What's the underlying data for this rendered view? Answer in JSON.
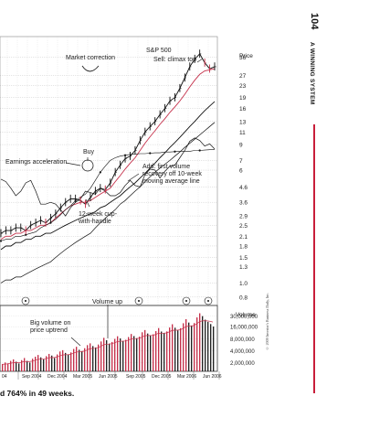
{
  "page": {
    "page_number": "104",
    "section_title": "A WINNING SYSTEM",
    "caption": "d 764% in 49 weeks.",
    "copyright": "© 2009 Investor's Business Daily, Inc."
  },
  "chart_data": {
    "type": "line",
    "title": "",
    "price_axis_label": "Price",
    "price_ticks": [
      "36",
      "27",
      "23",
      "19",
      "16",
      "13",
      "11",
      "9",
      "7",
      "6",
      "4.6",
      "3.6",
      "2.9",
      "2.5",
      "2.1",
      "1.8",
      "1.5",
      "1.3",
      "1.0",
      "0.8"
    ],
    "volume_axis_label": "Volume",
    "volume_ticks": [
      "30,000,000",
      "16,000,000",
      "8,000,000",
      "4,000,000",
      "2,000,000"
    ],
    "x_tick_labels": [
      "04",
      "Sep 2004",
      "Dec 2004",
      "Mar 2005",
      "Jun 2005",
      "Sep 2005",
      "Dec 2005",
      "Mar 2006",
      "Jun 2006"
    ],
    "annotations": {
      "sp500": "S&P 500",
      "market_correction": "Market correction",
      "sell_climax": "Sell: climax top",
      "buy": "Buy",
      "earnings_acceleration": "Earnings acceleration",
      "add_line1": "Add: first volume",
      "add_line2": "recovery off 10-week",
      "add_line3": "moving average line",
      "cup_line1": "12-week cup-",
      "cup_line2": "with-handle",
      "volume_up": "Volume up",
      "bigvol_line1": "Big volume on",
      "bigvol_line2": "price uptrend"
    },
    "series": [
      {
        "name": "",
        "values": [
          2.2,
          2.3,
          2.3,
          2.4,
          2.4,
          2.3,
          2.5,
          2.6,
          2.7,
          2.6,
          2.8,
          3.0,
          3.3,
          3.6,
          3.8,
          3.8,
          3.7,
          3.5,
          3.9,
          4.3,
          4.5,
          4.4,
          4.9,
          5.8,
          6.5,
          7.2,
          7.5,
          8.2,
          9.6,
          11,
          12,
          13,
          14.5,
          16,
          18,
          19,
          22,
          26,
          31,
          35,
          38,
          33,
          30,
          31
        ]
      },
      {
        "name": "",
        "values": [
          2.0,
          2.1,
          2.1,
          2.2,
          2.2,
          2.3,
          2.3,
          2.4,
          2.5,
          2.5,
          2.6,
          2.8,
          3.0,
          3.2,
          3.4,
          3.5,
          3.6,
          3.6,
          3.7,
          3.9,
          4.1,
          4.3,
          4.5,
          5.0,
          5.5,
          6.1,
          6.7,
          7.3,
          8.2,
          9.2,
          10.2,
          11.2,
          12.4,
          13.6,
          15,
          16.4,
          18,
          20,
          22.5,
          25,
          27.5,
          29,
          29.5,
          30
        ]
      },
      {
        "name": "",
        "values": [
          1.7,
          1.8,
          1.8,
          1.9,
          1.9,
          2.0,
          2.0,
          2.1,
          2.1,
          2.2,
          2.2,
          2.3,
          2.4,
          2.5,
          2.6,
          2.7,
          2.8,
          2.9,
          3.0,
          3.1,
          3.3,
          3.4,
          3.6,
          3.8,
          4.0,
          4.3,
          4.6,
          4.9,
          5.3,
          5.7,
          6.2,
          6.7,
          7.3,
          7.9,
          8.6,
          9.3,
          10.1,
          11,
          12,
          13,
          14.2,
          15.4,
          16.6,
          17.8
        ]
      },
      {
        "name": "",
        "values": [
          5.2,
          5.0,
          4.5,
          4.0,
          4.3,
          4.9,
          5.1,
          4.3,
          3.5,
          3.5,
          3.6,
          3.5,
          3.2,
          2.9,
          3.3,
          3.6,
          3.8,
          4.3,
          4.2,
          4.1,
          4.5,
          4.3,
          4.0,
          4.0,
          4.2,
          4.7,
          5.1,
          4.7,
          4.6,
          5.6,
          6.1,
          6.0,
          5.3,
          5.9,
          6.4,
          6.5,
          7.3,
          8.2,
          9.5,
          10.0,
          9.6,
          8.8,
          9.1,
          8.4
        ]
      },
      {
        "name": "",
        "values": [
          1.95,
          2.0,
          2.0,
          2.1,
          2.1,
          2.15,
          2.2,
          2.25,
          2.4,
          2.5,
          2.6,
          2.75,
          2.95,
          3.2,
          3.4,
          3.7,
          3.9,
          4.1,
          4.5,
          5.1,
          5.8,
          6.4,
          7.0,
          7.3,
          7.5,
          7.6,
          7.7,
          7.75,
          7.8,
          7.8,
          7.85,
          7.9,
          7.9,
          8.0,
          8.0,
          8.05,
          8.1,
          8.1,
          8.1,
          8.2,
          8.2,
          8.25,
          8.3,
          8.3
        ]
      },
      {
        "name": "",
        "values": [
          1.0,
          1.05,
          1.05,
          1.1,
          1.1,
          1.15,
          1.2,
          1.25,
          1.3,
          1.35,
          1.4,
          1.5,
          1.6,
          1.7,
          1.8,
          1.9,
          2.0,
          2.1,
          2.2,
          2.4,
          2.6,
          2.8,
          3.0,
          3.2,
          3.5,
          3.7,
          4.0,
          4.3,
          4.6,
          5.0,
          5.4,
          5.8,
          6.2,
          6.6,
          7.0,
          7.5,
          8.0,
          8.6,
          9.2,
          9.8,
          10.5,
          11.2,
          12.0,
          12.8
        ]
      }
    ],
    "volume": [
      1.8,
      2.0,
      1.9,
      2.2,
      2.4,
      2.1,
      1.9,
      2.3,
      2.6,
      2.2,
      2.0,
      2.5,
      2.8,
      3.1,
      2.7,
      2.4,
      2.9,
      3.3,
      3.0,
      2.6,
      3.2,
      3.8,
      4.1,
      3.5,
      3.2,
      3.6,
      4.4,
      5.0,
      4.2,
      3.9,
      4.6,
      5.5,
      6.1,
      5.2,
      4.8,
      5.7,
      6.8,
      8.4,
      7.3,
      6.0,
      6.6,
      7.9,
      9.2,
      8.1,
      7.0,
      7.5,
      8.8,
      10.5,
      9.3,
      8.2,
      9.0,
      11.6,
      13.2,
      10.8,
      9.6,
      10.3,
      12.4,
      14.8,
      12.1,
      10.9,
      12.2,
      15.3,
      18.5,
      15.1,
      13.0,
      14.7,
      19.6,
      24.8,
      20.4,
      17.2,
      19.8,
      27.5,
      35.0,
      29.6,
      24.1,
      21.3,
      18.7,
      16.2
    ]
  }
}
